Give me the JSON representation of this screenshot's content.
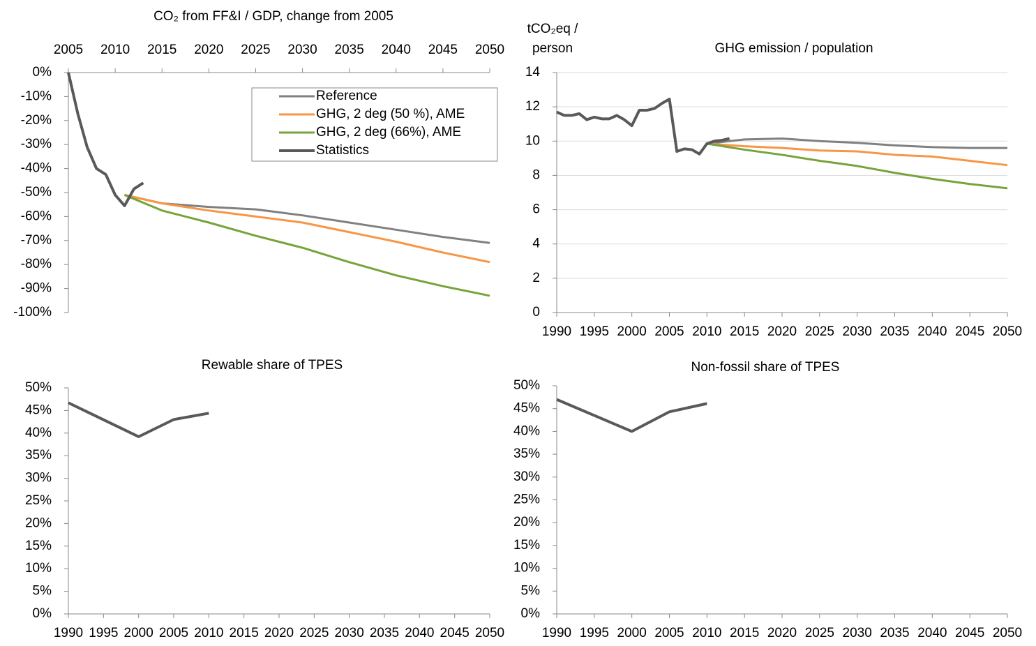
{
  "chart_data": [
    {
      "type": "line",
      "title": "CO₂ from FF&I / GDP, change from 2005",
      "x_axis_position": "top",
      "grid": false,
      "legend": "upper right",
      "xlim": [
        2005,
        2050
      ],
      "xticks": [
        2005,
        2010,
        2015,
        2020,
        2025,
        2030,
        2035,
        2040,
        2045,
        2050
      ],
      "ylim": [
        -100,
        0
      ],
      "yticks": [
        {
          "value": 0,
          "label": "0%"
        },
        {
          "value": -10,
          "label": "-10%"
        },
        {
          "value": -20,
          "label": "-20%"
        },
        {
          "value": -30,
          "label": "-30%"
        },
        {
          "value": -40,
          "label": "-40%"
        },
        {
          "value": -50,
          "label": "-50%"
        },
        {
          "value": -60,
          "label": "-60%"
        },
        {
          "value": -70,
          "label": "-70%"
        },
        {
          "value": -80,
          "label": "-80%"
        },
        {
          "value": -90,
          "label": "-90%"
        },
        {
          "value": -100,
          "label": "-100%"
        }
      ],
      "series": [
        {
          "name": "Reference",
          "color": "#808080",
          "x": [
            2011,
            2015,
            2020,
            2025,
            2030,
            2035,
            2040,
            2045,
            2050
          ],
          "values": [
            -51,
            -54.5,
            -56,
            -57,
            -59.5,
            -62.5,
            -65.5,
            -68.5,
            -71
          ]
        },
        {
          "name": "GHG, 2 deg (50 %), AME",
          "color": "#f79646",
          "x": [
            2011,
            2015,
            2020,
            2025,
            2030,
            2035,
            2040,
            2045,
            2050
          ],
          "values": [
            -51,
            -54.5,
            -57.5,
            -60,
            -62.5,
            -66.5,
            -70.5,
            -75,
            -79
          ]
        },
        {
          "name": "GHG, 2 deg (66%), AME",
          "color": "#77a33b",
          "x": [
            2011,
            2015,
            2020,
            2025,
            2030,
            2035,
            2040,
            2045,
            2050
          ],
          "values": [
            -51,
            -57.5,
            -62.5,
            -68,
            -73,
            -79,
            -84.5,
            -89,
            -93
          ]
        },
        {
          "name": "Statistics",
          "color": "#595959",
          "x": [
            2005,
            2006,
            2007,
            2008,
            2009,
            2010,
            2011,
            2012,
            2013
          ],
          "values": [
            0,
            -17,
            -31,
            -40,
            -42.5,
            -51,
            -55.5,
            -48.5,
            -46
          ]
        }
      ]
    },
    {
      "type": "line",
      "title": "GHG emission / population",
      "ylabel": [
        "tCO₂eq /",
        "person"
      ],
      "grid": true,
      "xlim": [
        1990,
        2050
      ],
      "xticks": [
        1990,
        1995,
        2000,
        2005,
        2010,
        2015,
        2020,
        2025,
        2030,
        2035,
        2040,
        2045,
        2050
      ],
      "ylim": [
        0,
        14
      ],
      "yticks": [
        0,
        2,
        4,
        6,
        8,
        10,
        12,
        14
      ],
      "series": [
        {
          "color": "#808080",
          "x": [
            2010,
            2015,
            2020,
            2025,
            2030,
            2035,
            2040,
            2045,
            2050
          ],
          "values": [
            9.85,
            10.1,
            10.15,
            10.0,
            9.9,
            9.75,
            9.65,
            9.6,
            9.6
          ]
        },
        {
          "color": "#f79646",
          "x": [
            2010,
            2015,
            2020,
            2025,
            2030,
            2035,
            2040,
            2045,
            2050
          ],
          "values": [
            9.85,
            9.7,
            9.6,
            9.45,
            9.4,
            9.2,
            9.1,
            8.85,
            8.6
          ]
        },
        {
          "color": "#77a33b",
          "x": [
            2010,
            2015,
            2020,
            2025,
            2030,
            2035,
            2040,
            2045,
            2050
          ],
          "values": [
            9.85,
            9.5,
            9.2,
            8.85,
            8.55,
            8.15,
            7.8,
            7.5,
            7.25
          ]
        },
        {
          "color": "#595959",
          "x": [
            1990,
            1991,
            1992,
            1993,
            1994,
            1995,
            1996,
            1997,
            1998,
            1999,
            2000,
            2001,
            2002,
            2003,
            2004,
            2005,
            2006,
            2007,
            2008,
            2009,
            2010,
            2011,
            2012,
            2013
          ],
          "values": [
            11.7,
            11.5,
            11.5,
            11.6,
            11.25,
            11.4,
            11.3,
            11.3,
            11.5,
            11.25,
            10.9,
            11.8,
            11.8,
            11.9,
            12.2,
            12.45,
            9.4,
            9.55,
            9.5,
            9.25,
            9.85,
            10.0,
            10.05,
            10.15
          ]
        }
      ]
    },
    {
      "type": "line",
      "title": "Rewable share of TPES",
      "grid": false,
      "xlim": [
        1990,
        2050
      ],
      "xticks": [
        1990,
        1995,
        2000,
        2005,
        2010,
        2015,
        2020,
        2025,
        2030,
        2035,
        2040,
        2045,
        2050
      ],
      "ylim": [
        0,
        50
      ],
      "yticks": [
        {
          "value": 0,
          "label": "0%"
        },
        {
          "value": 5,
          "label": "5%"
        },
        {
          "value": 10,
          "label": "10%"
        },
        {
          "value": 15,
          "label": "15%"
        },
        {
          "value": 20,
          "label": "20%"
        },
        {
          "value": 25,
          "label": "25%"
        },
        {
          "value": 30,
          "label": "30%"
        },
        {
          "value": 35,
          "label": "35%"
        },
        {
          "value": 40,
          "label": "40%"
        },
        {
          "value": 45,
          "label": "45%"
        },
        {
          "value": 50,
          "label": "50%"
        }
      ],
      "series": [
        {
          "color": "#595959",
          "x": [
            1990,
            2000,
            2005,
            2010
          ],
          "values": [
            46.7,
            39.2,
            43,
            44.4
          ]
        }
      ]
    },
    {
      "type": "line",
      "title": "Non-fossil share of TPES",
      "grid": false,
      "xlim": [
        1990,
        2050
      ],
      "xticks": [
        1990,
        1995,
        2000,
        2005,
        2010,
        2015,
        2020,
        2025,
        2030,
        2035,
        2040,
        2045,
        2050
      ],
      "ylim": [
        0,
        50
      ],
      "yticks": [
        {
          "value": 0,
          "label": "0%"
        },
        {
          "value": 5,
          "label": "5%"
        },
        {
          "value": 10,
          "label": "10%"
        },
        {
          "value": 15,
          "label": "15%"
        },
        {
          "value": 20,
          "label": "20%"
        },
        {
          "value": 25,
          "label": "25%"
        },
        {
          "value": 30,
          "label": "30%"
        },
        {
          "value": 35,
          "label": "35%"
        },
        {
          "value": 40,
          "label": "40%"
        },
        {
          "value": 45,
          "label": "45%"
        },
        {
          "value": 50,
          "label": "50%"
        }
      ],
      "series": [
        {
          "color": "#595959",
          "x": [
            1990,
            2000,
            2005,
            2010
          ],
          "values": [
            47,
            40,
            44.3,
            46.1
          ]
        }
      ]
    }
  ]
}
